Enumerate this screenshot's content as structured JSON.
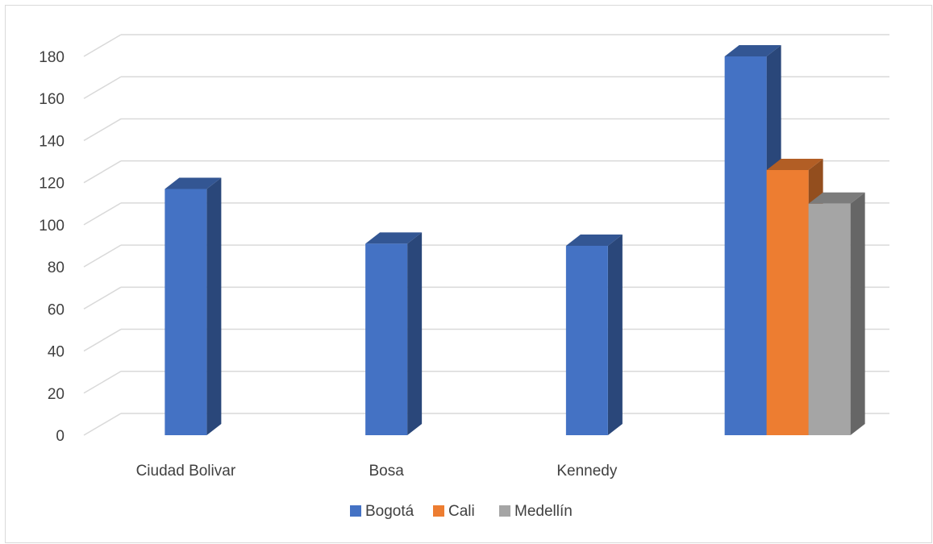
{
  "chart_data": {
    "type": "bar",
    "categories": [
      "Ciudad Bolivar",
      "Bosa",
      "Kennedy",
      ""
    ],
    "series": [
      {
        "name": "Bogotá",
        "values": [
          117,
          91,
          90,
          180
        ],
        "color": "#4472C4"
      },
      {
        "name": "Cali",
        "values": [
          null,
          null,
          null,
          126
        ],
        "color": "#ED7D31"
      },
      {
        "name": "Medellín",
        "values": [
          null,
          null,
          null,
          110
        ],
        "color": "#A5A5A5"
      }
    ],
    "yticks": [
      "0",
      "20",
      "40",
      "60",
      "80",
      "100",
      "120",
      "140",
      "160",
      "180"
    ],
    "ylim": [
      0,
      180
    ],
    "grid": true,
    "legend_position": "bottom",
    "style": "3d-column"
  }
}
